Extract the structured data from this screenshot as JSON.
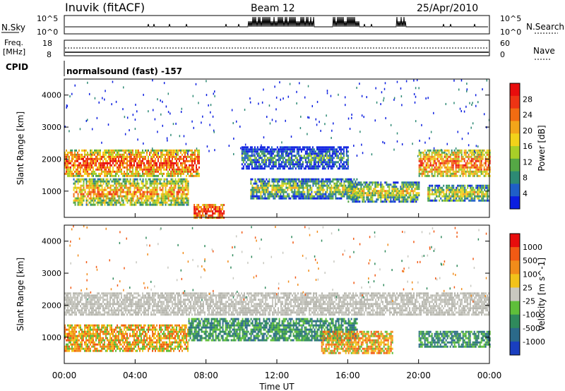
{
  "header": {
    "station": "Inuvik (fitACF)",
    "beam": "Beam 12",
    "date": "25/Apr/2010"
  },
  "noise_panel": {
    "left_label": "N.Sky",
    "right_label": "N.Search",
    "left_ticks": [
      "10^5",
      "10^0"
    ],
    "right_ticks": [
      "10^5",
      "10^0"
    ]
  },
  "freq_panel": {
    "left_label_top": "Freq.",
    "left_label_unit": "[MHz]",
    "left_ticks": [
      "18",
      "8"
    ],
    "right_label": "Nave",
    "right_ticks": [
      "60",
      "0"
    ]
  },
  "cpid": {
    "label": "CPID",
    "text": "normalsound (fast) -157"
  },
  "chart_data": [
    {
      "type": "heatmap",
      "name": "power",
      "ylabel": "Slant Range [km]",
      "yticks": [
        "4000",
        "3000",
        "2000",
        "1000"
      ],
      "ylim": [
        180,
        4500
      ],
      "xlabel": "Time UT",
      "xticks": [
        "00:00",
        "04:00",
        "08:00",
        "12:00",
        "16:00",
        "20:00",
        "00:00"
      ],
      "colorbar": {
        "label": "Power [dB]",
        "ticks": [
          "28",
          "24",
          "20",
          "16",
          "12",
          "8",
          "4"
        ],
        "colors": [
          "#0b1ee0",
          "#1f5fc8",
          "#2d8a74",
          "#55a845",
          "#a8cf28",
          "#f2d21a",
          "#f3a51a",
          "#f26c12",
          "#ee3414",
          "#e80d0d"
        ]
      },
      "bands": [
        {
          "t0": 0.0,
          "t1": 7.6,
          "r0": 1500,
          "r1": 2300,
          "level": 0.85
        },
        {
          "t0": 0.5,
          "t1": 7.0,
          "r0": 600,
          "r1": 1400,
          "level": 0.7
        },
        {
          "t0": 10.0,
          "t1": 16.0,
          "r0": 1700,
          "r1": 2400,
          "level": 0.3
        },
        {
          "t0": 10.5,
          "t1": 16.5,
          "r0": 800,
          "r1": 1400,
          "level": 0.5
        },
        {
          "t0": 16.0,
          "t1": 20.0,
          "r0": 700,
          "r1": 1300,
          "level": 0.55
        },
        {
          "t0": 20.0,
          "t1": 24.0,
          "r0": 1500,
          "r1": 2300,
          "level": 0.8
        },
        {
          "t0": 20.5,
          "t1": 24.0,
          "r0": 700,
          "r1": 1200,
          "level": 0.55
        },
        {
          "t0": 7.3,
          "t1": 9.0,
          "r0": 180,
          "r1": 600,
          "level": 0.98
        }
      ]
    },
    {
      "type": "heatmap",
      "name": "velocity",
      "ylabel": "Slant Range [km]",
      "yticks": [
        "4000",
        "3000",
        "2000",
        "1000"
      ],
      "ylim": [
        180,
        4500
      ],
      "xlabel": "Time UT",
      "xticks": [
        "00:00",
        "04:00",
        "08:00",
        "12:00",
        "16:00",
        "20:00",
        "00:00"
      ],
      "colorbar": {
        "label": "Velocity [m s^-1]",
        "ticks": [
          "1000",
          "500",
          "100",
          "25",
          "-25",
          "-100",
          "-500",
          "-1000"
        ],
        "colors": [
          "#1a3fbf",
          "#2b6a8a",
          "#2f8a5c",
          "#5fbf3a",
          "#c8c8c0",
          "#f2c21a",
          "#f28c1a",
          "#f25a14",
          "#e80d0d"
        ]
      },
      "bands": [
        {
          "t0": 0.0,
          "t1": 24.0,
          "r0": 1700,
          "r1": 2400,
          "class": "ground"
        },
        {
          "t0": 0.0,
          "t1": 7.0,
          "r0": 600,
          "r1": 1400,
          "class": "toward"
        },
        {
          "t0": 7.0,
          "t1": 16.5,
          "r0": 900,
          "r1": 1600,
          "class": "away"
        },
        {
          "t0": 14.5,
          "t1": 18.5,
          "r0": 500,
          "r1": 1200,
          "class": "toward"
        },
        {
          "t0": 20.0,
          "t1": 24.0,
          "r0": 700,
          "r1": 1200,
          "class": "away"
        }
      ]
    }
  ],
  "colors": {
    "ground": "#c8c8c0"
  }
}
